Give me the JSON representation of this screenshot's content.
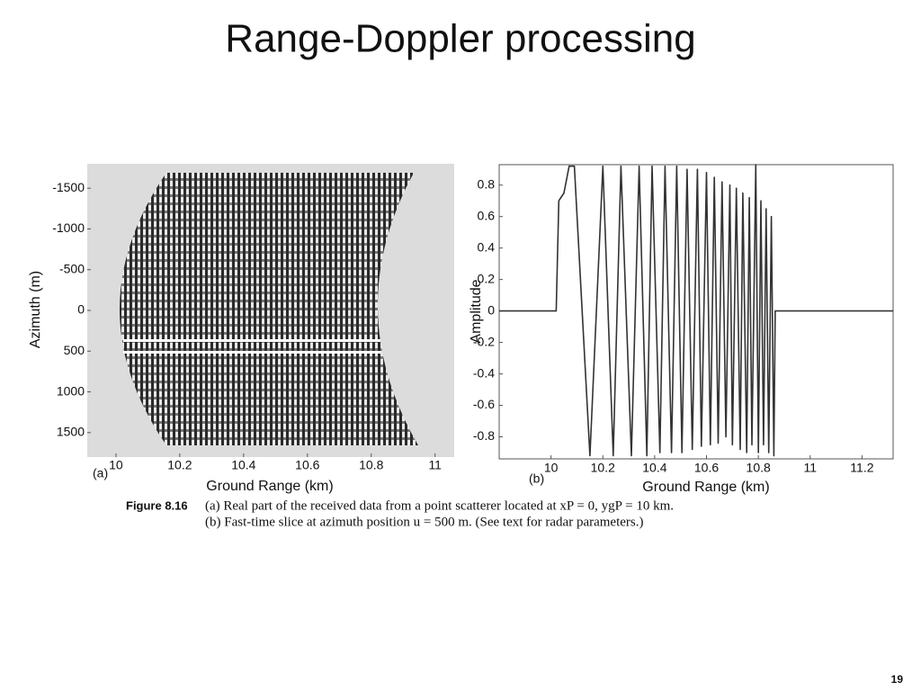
{
  "title": "Range-Doppler processing",
  "page_number": "19",
  "caption": {
    "figure": "Figure 8.16",
    "line_a": "(a) Real part of the received data from a point scatterer located at xP = 0, ygP = 10 km.",
    "line_b": "(b) Fast-time slice at azimuth position u = 500 m. (See text for radar parameters.)"
  },
  "chart_data": [
    {
      "type": "image",
      "panel_label": "(a)",
      "xlabel": "Ground Range (km)",
      "ylabel": "Azimuth (m)",
      "xlim": [
        9.91,
        11.06
      ],
      "ylim": [
        1800,
        -1800
      ],
      "y_inverted": true,
      "xticks": [
        10,
        10.2,
        10.4,
        10.6,
        10.8,
        11
      ],
      "yticks": [
        -1500,
        -1000,
        -500,
        0,
        500,
        1000,
        1500
      ]
    },
    {
      "type": "line",
      "panel_label": "(b)",
      "xlabel": "Ground Range (km)",
      "ylabel": "Amplitude",
      "color": "#333333",
      "xlim": [
        9.8,
        11.32
      ],
      "ylim": [
        -0.94,
        0.93
      ],
      "xticks": [
        10,
        10.2,
        10.4,
        10.6,
        10.8,
        11,
        11.2
      ],
      "yticks": [
        0.8,
        0.6,
        0.4,
        0.2,
        0,
        -0.2,
        -0.4,
        -0.6,
        -0.8
      ],
      "x": [
        9.8,
        10.02,
        10.03,
        10.05,
        10.07,
        10.09,
        10.15,
        10.2,
        10.24,
        10.27,
        10.31,
        10.34,
        10.37,
        10.39,
        10.42,
        10.44,
        10.465,
        10.485,
        10.505,
        10.525,
        10.545,
        10.565,
        10.58,
        10.6,
        10.615,
        10.63,
        10.645,
        10.66,
        10.675,
        10.69,
        10.7,
        10.715,
        10.73,
        10.74,
        10.755,
        10.765,
        10.775,
        10.79,
        10.8,
        10.81,
        10.82,
        10.83,
        10.84,
        10.85,
        10.86,
        10.865,
        11.32
      ],
      "values": [
        0,
        0,
        0.7,
        0.75,
        0.92,
        0.92,
        -0.92,
        0.92,
        -0.92,
        0.92,
        -0.92,
        0.92,
        -0.92,
        0.92,
        -0.9,
        0.92,
        -0.9,
        0.92,
        -0.9,
        0.9,
        -0.88,
        0.9,
        -0.86,
        0.88,
        -0.85,
        0.85,
        -0.84,
        0.82,
        -0.8,
        0.8,
        -0.85,
        0.78,
        -0.88,
        0.75,
        -0.9,
        0.72,
        -0.85,
        0.93,
        -0.9,
        0.7,
        -0.85,
        0.65,
        -0.9,
        0.6,
        -0.92,
        0,
        0
      ]
    }
  ]
}
